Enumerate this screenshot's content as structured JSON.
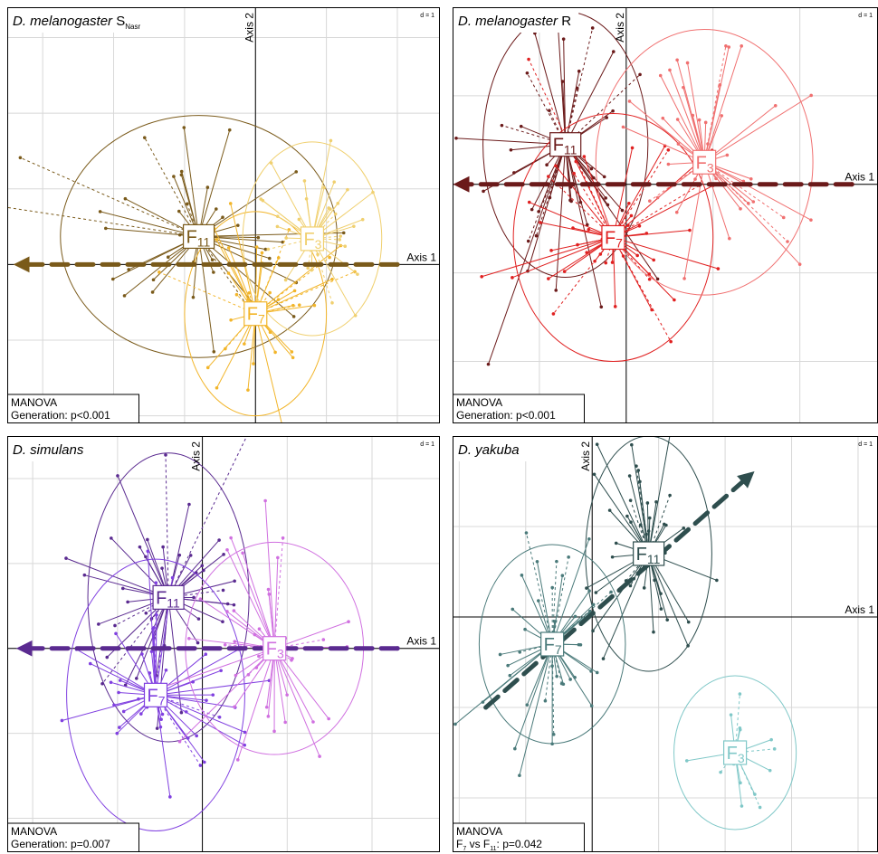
{
  "chart_data": [
    {
      "type": "scatter",
      "title_main": "D. melanogaster",
      "title_sub": "S",
      "title_subscript": "Nasr",
      "d_label": "d = 1",
      "axis1_label": "Axis 1",
      "axis2_label": "Axis 2",
      "grid": true,
      "xlim": [
        -3.5,
        2.6
      ],
      "ylim": [
        -2.1,
        3.4
      ],
      "stat": {
        "test": "MANOVA",
        "result": "Generation: p<0.001"
      },
      "arrow": {
        "from": [
          2.0,
          0
        ],
        "to": [
          -3.3,
          0
        ],
        "color": "#7a5a1a"
      },
      "series": [
        {
          "name": "F",
          "sub": "11",
          "center": [
            -0.8,
            0.37
          ],
          "ellipse_r": [
            1.95,
            1.6
          ],
          "color": "#7a5a1a",
          "n": 42,
          "spread": [
            1.6,
            1.3
          ]
        },
        {
          "name": "F",
          "sub": "7",
          "center": [
            0.0,
            -0.65
          ],
          "ellipse_r": [
            1.0,
            1.35
          ],
          "color": "#f2b52a",
          "n": 40,
          "spread": [
            0.9,
            1.3
          ]
        },
        {
          "name": "F",
          "sub": "3",
          "center": [
            0.8,
            0.34
          ],
          "ellipse_r": [
            0.98,
            1.28
          ],
          "color": "#f0d070",
          "n": 32,
          "spread": [
            0.9,
            1.3
          ]
        }
      ]
    },
    {
      "type": "scatter",
      "title_main": "D. melanogaster",
      "title_sub": "R",
      "title_subscript": "",
      "d_label": "d = 1",
      "axis1_label": "Axis 1",
      "axis2_label": "Axis 2",
      "grid": true,
      "xlim": [
        -2.0,
        2.9
      ],
      "ylim": [
        -2.7,
        2.0
      ],
      "stat": {
        "test": "MANOVA",
        "result": "Generation: p<0.001"
      },
      "arrow": {
        "from": [
          2.6,
          0
        ],
        "to": [
          -1.9,
          0
        ],
        "color": "#6b1a1a"
      },
      "series": [
        {
          "name": "F",
          "sub": "11",
          "center": [
            -0.7,
            0.45
          ],
          "ellipse_r": [
            0.95,
            1.5
          ],
          "color": "#6b1a1a",
          "n": 42,
          "spread": [
            0.9,
            1.5
          ]
        },
        {
          "name": "F",
          "sub": "7",
          "center": [
            -0.15,
            -0.6
          ],
          "ellipse_r": [
            1.15,
            1.4
          ],
          "color": "#e02020",
          "n": 45,
          "spread": [
            1.2,
            1.3
          ]
        },
        {
          "name": "F",
          "sub": "3",
          "center": [
            0.9,
            0.25
          ],
          "ellipse_r": [
            1.25,
            1.5
          ],
          "color": "#f07070",
          "n": 40,
          "spread": [
            1.3,
            1.4
          ]
        }
      ]
    },
    {
      "type": "scatter",
      "title_main": "D. simulans",
      "title_sub": "",
      "title_subscript": "",
      "d_label": "d = 1",
      "axis1_label": "Axis 1",
      "axis2_label": "Axis 2",
      "grid": true,
      "xlim": [
        -2.3,
        2.8
      ],
      "ylim": [
        -2.4,
        2.5
      ],
      "stat": {
        "test": "MANOVA",
        "result": "Generation: p=0.007"
      },
      "arrow": {
        "from": [
          2.3,
          0
        ],
        "to": [
          -2.1,
          0
        ],
        "color": "#5a2a90"
      },
      "series": [
        {
          "name": "F",
          "sub": "11",
          "center": [
            -0.4,
            0.6
          ],
          "ellipse_r": [
            0.95,
            1.7
          ],
          "color": "#5a2a90",
          "n": 45,
          "spread": [
            1.0,
            1.5
          ]
        },
        {
          "name": "F",
          "sub": "7",
          "center": [
            -0.55,
            -0.55
          ],
          "ellipse_r": [
            1.05,
            1.6
          ],
          "color": "#8040e0",
          "n": 45,
          "spread": [
            1.1,
            1.4
          ]
        },
        {
          "name": "F",
          "sub": "3",
          "center": [
            0.85,
            0.0
          ],
          "ellipse_r": [
            1.05,
            1.25
          ],
          "color": "#d070e0",
          "n": 40,
          "spread": [
            1.1,
            1.2
          ]
        }
      ]
    },
    {
      "type": "scatter",
      "title_main": "D. yakuba",
      "title_sub": "",
      "title_subscript": "",
      "d_label": "d = 1",
      "axis1_label": "Axis 1",
      "axis2_label": "Axis 2",
      "grid": true,
      "xlim": [
        -2.1,
        4.3
      ],
      "ylim": [
        -2.6,
        2.0
      ],
      "stat": {
        "test": "MANOVA",
        "result_prefix": "F",
        "result_sub1": "7",
        "result_mid": " vs F",
        "result_sub2": "11",
        "result_suffix": ": p=0.042"
      },
      "arrow": {
        "from": [
          -1.6,
          -1.0
        ],
        "to": [
          2.35,
          1.55
        ],
        "color": "#2e4e4e"
      },
      "series": [
        {
          "name": "F",
          "sub": "11",
          "center": [
            0.85,
            0.7
          ],
          "ellipse_r": [
            0.95,
            1.3
          ],
          "color": "#2e4e4e",
          "n": 42,
          "spread": [
            0.9,
            1.1
          ]
        },
        {
          "name": "F",
          "sub": "7",
          "center": [
            -0.6,
            -0.3
          ],
          "ellipse_r": [
            1.1,
            1.1
          ],
          "color": "#4a7a7a",
          "n": 42,
          "spread": [
            1.0,
            1.1
          ]
        },
        {
          "name": "F",
          "sub": "3",
          "center": [
            2.15,
            -1.5
          ],
          "ellipse_r": [
            0.92,
            0.85
          ],
          "color": "#80c8c8",
          "n": 16,
          "spread": [
            0.8,
            0.7
          ]
        }
      ]
    }
  ]
}
